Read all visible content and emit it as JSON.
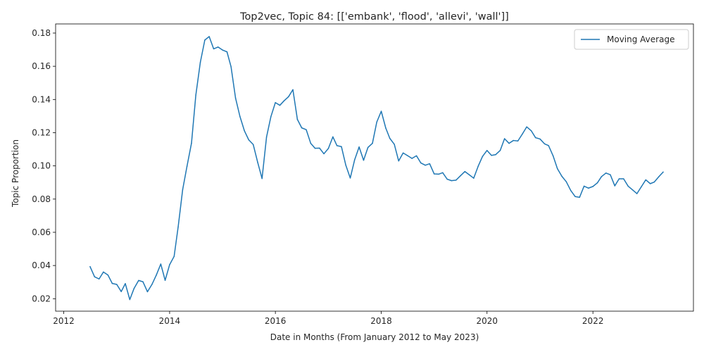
{
  "chart_data": {
    "type": "line",
    "title": "Top2vec, Topic 84: [['embank', 'flood', 'allevi', 'wall']]",
    "xlabel": "Date in Months (From January 2012 to May 2023)",
    "ylabel": "Topic Proportion",
    "xlim": [
      "2011-11-06",
      "2023-11-26"
    ],
    "ylim": [
      0.0125,
      0.1855
    ],
    "x_ticks": [
      "2012-01-01",
      "2014-01-01",
      "2016-01-01",
      "2018-01-01",
      "2020-01-01",
      "2022-01-01"
    ],
    "x_tick_labels": [
      "2012",
      "2014",
      "2016",
      "2018",
      "2020",
      "2022"
    ],
    "y_ticks": [
      0.02,
      0.04,
      0.06,
      0.08,
      0.1,
      0.12,
      0.14,
      0.16,
      0.18
    ],
    "y_tick_labels": [
      "0.02",
      "0.04",
      "0.06",
      "0.08",
      "0.10",
      "0.12",
      "0.14",
      "0.16",
      "0.18"
    ],
    "grid": false,
    "legend_position": "top-right",
    "color": "#1f77b4",
    "series": [
      {
        "name": "Moving Average",
        "x": [
          "2012-07",
          "2012-08",
          "2012-09",
          "2012-10",
          "2012-11",
          "2012-12",
          "2013-01",
          "2013-02",
          "2013-03",
          "2013-04",
          "2013-05",
          "2013-06",
          "2013-07",
          "2013-08",
          "2013-09",
          "2013-10",
          "2013-11",
          "2013-12",
          "2014-01",
          "2014-02",
          "2014-03",
          "2014-04",
          "2014-05",
          "2014-06",
          "2014-07",
          "2014-08",
          "2014-09",
          "2014-10",
          "2014-11",
          "2014-12",
          "2015-01",
          "2015-02",
          "2015-03",
          "2015-04",
          "2015-05",
          "2015-06",
          "2015-07",
          "2015-08",
          "2015-09",
          "2015-10",
          "2015-11",
          "2015-12",
          "2016-01",
          "2016-02",
          "2016-03",
          "2016-04",
          "2016-05",
          "2016-06",
          "2016-07",
          "2016-08",
          "2016-09",
          "2016-10",
          "2016-11",
          "2016-12",
          "2017-01",
          "2017-02",
          "2017-03",
          "2017-04",
          "2017-05",
          "2017-06",
          "2017-07",
          "2017-08",
          "2017-09",
          "2017-10",
          "2017-11",
          "2017-12",
          "2018-01",
          "2018-02",
          "2018-03",
          "2018-04",
          "2018-05",
          "2018-06",
          "2018-07",
          "2018-08",
          "2018-09",
          "2018-10",
          "2018-11",
          "2018-12",
          "2019-01",
          "2019-02",
          "2019-03",
          "2019-04",
          "2019-05",
          "2019-06",
          "2019-07",
          "2019-08",
          "2019-09",
          "2019-10",
          "2019-11",
          "2019-12",
          "2020-01",
          "2020-02",
          "2020-03",
          "2020-04",
          "2020-05",
          "2020-06",
          "2020-07",
          "2020-08",
          "2020-09",
          "2020-10",
          "2020-11",
          "2020-12",
          "2021-01",
          "2021-02",
          "2021-03",
          "2021-04",
          "2021-05",
          "2021-06",
          "2021-07",
          "2021-08",
          "2021-09",
          "2021-10",
          "2021-11",
          "2021-12",
          "2022-01",
          "2022-02",
          "2022-03",
          "2022-04",
          "2022-05",
          "2022-06",
          "2022-07",
          "2022-08",
          "2022-09",
          "2022-10",
          "2022-11",
          "2022-12",
          "2023-01",
          "2023-02",
          "2023-03",
          "2023-04",
          "2023-05"
        ],
        "values": [
          0.0393,
          0.0332,
          0.0319,
          0.0361,
          0.0343,
          0.0292,
          0.0286,
          0.0243,
          0.0291,
          0.0195,
          0.0263,
          0.031,
          0.0302,
          0.0242,
          0.0286,
          0.0342,
          0.0409,
          0.0311,
          0.0405,
          0.0455,
          0.0633,
          0.0857,
          0.0998,
          0.1137,
          0.1427,
          0.1624,
          0.1758,
          0.1779,
          0.1705,
          0.1716,
          0.1698,
          0.1687,
          0.1597,
          0.1409,
          0.1299,
          0.1212,
          0.1157,
          0.1129,
          0.1021,
          0.0924,
          0.1174,
          0.1296,
          0.1381,
          0.1365,
          0.1392,
          0.1417,
          0.1459,
          0.128,
          0.1229,
          0.1218,
          0.1136,
          0.1106,
          0.1107,
          0.1073,
          0.1105,
          0.1175,
          0.1122,
          0.1116,
          0.1005,
          0.0927,
          0.1036,
          0.1114,
          0.1034,
          0.1111,
          0.1136,
          0.1264,
          0.1329,
          0.1228,
          0.1166,
          0.113,
          0.103,
          0.1078,
          0.1062,
          0.1045,
          0.1061,
          0.1018,
          0.1004,
          0.1013,
          0.0952,
          0.095,
          0.0959,
          0.092,
          0.0911,
          0.0914,
          0.094,
          0.0966,
          0.0946,
          0.0926,
          0.0998,
          0.1057,
          0.1093,
          0.1063,
          0.1068,
          0.1093,
          0.1164,
          0.1136,
          0.1153,
          0.115,
          0.1192,
          0.1235,
          0.1212,
          0.117,
          0.1162,
          0.1133,
          0.1122,
          0.1061,
          0.0983,
          0.0937,
          0.0905,
          0.0852,
          0.0815,
          0.0811,
          0.0878,
          0.0866,
          0.0876,
          0.0898,
          0.0935,
          0.0957,
          0.0947,
          0.088,
          0.0922,
          0.0922,
          0.0878,
          0.0856,
          0.0833,
          0.0874,
          0.0916,
          0.0893,
          0.0903,
          0.0935,
          0.0963
        ]
      }
    ]
  }
}
